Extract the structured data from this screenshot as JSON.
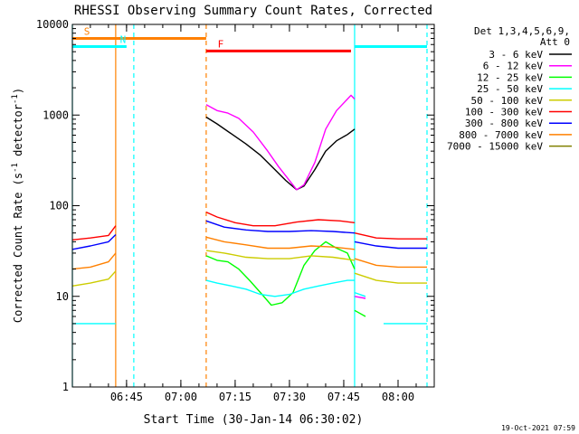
{
  "chart_data": {
    "type": "line",
    "title": "RHESSI Observing Summary Count Rates, Corrected",
    "xlabel": "Start Time (30-Jan-14 06:30:02)",
    "ylabel_main": "Corrected Count Rate (s",
    "ylabel_sup1": "-1",
    "ylabel_mid": " detector",
    "ylabel_sup2": "-1",
    "ylabel_end": ")",
    "timestamp": "19-Oct-2021 07:59",
    "y_scale": "log",
    "ylim": [
      1,
      10000
    ],
    "xlim": [
      "06:30:02",
      "08:10:00"
    ],
    "x_ticks": [
      "06:45",
      "07:00",
      "07:15",
      "07:30",
      "07:45",
      "08:00"
    ],
    "y_ticks": [
      "1",
      "10",
      "100",
      "1000",
      "10000"
    ],
    "legend_title": [
      "Det 1,3,4,5,6,9,",
      "Att 0"
    ],
    "legend_position": "right",
    "series": [
      {
        "name": "3 - 6 keV",
        "color": "#000000",
        "segments": [
          [
            [
              "07:07",
              950
            ],
            [
              "07:10",
              800
            ],
            [
              "07:14",
              620
            ],
            [
              "07:18",
              480
            ],
            [
              "07:22",
              360
            ],
            [
              "07:26",
              250
            ],
            [
              "07:29",
              190
            ],
            [
              "07:32",
              150
            ],
            [
              "07:34",
              165
            ],
            [
              "07:37",
              250
            ],
            [
              "07:40",
              400
            ],
            [
              "07:43",
              520
            ],
            [
              "07:46",
              610
            ],
            [
              "07:48",
              700
            ]
          ]
        ]
      },
      {
        "name": "6 - 12 keV",
        "color": "#ff00ff",
        "segments": [
          [
            [
              "07:07",
              1300
            ],
            [
              "07:10",
              1120
            ],
            [
              "07:13",
              1050
            ],
            [
              "07:16",
              920
            ],
            [
              "07:20",
              650
            ],
            [
              "07:24",
              400
            ],
            [
              "07:27",
              270
            ],
            [
              "07:30",
              190
            ],
            [
              "07:32",
              150
            ],
            [
              "07:34",
              170
            ],
            [
              "07:37",
              300
            ],
            [
              "07:40",
              700
            ],
            [
              "07:43",
              1120
            ],
            [
              "07:46",
              1500
            ],
            [
              "07:47",
              1650
            ],
            [
              "07:48",
              1500
            ]
          ],
          [
            [
              "07:48",
              10
            ],
            [
              "07:51",
              9.5
            ]
          ]
        ]
      },
      {
        "name": "12 - 25 keV",
        "color": "#00ff00",
        "segments": [
          [
            [
              "07:07",
              28
            ],
            [
              "07:10",
              25
            ],
            [
              "07:13",
              24
            ],
            [
              "07:16",
              20
            ],
            [
              "07:19",
              15
            ],
            [
              "07:22",
              11
            ],
            [
              "07:25",
              8
            ],
            [
              "07:28",
              8.5
            ],
            [
              "07:31",
              11
            ],
            [
              "07:34",
              22
            ],
            [
              "07:37",
              32
            ],
            [
              "07:40",
              40
            ],
            [
              "07:43",
              34
            ],
            [
              "07:46",
              30
            ],
            [
              "07:48",
              20
            ]
          ],
          [
            [
              "07:48",
              7
            ],
            [
              "07:51",
              6
            ]
          ]
        ]
      },
      {
        "name": "25 - 50 keV",
        "color": "#00ffff",
        "segments": [
          [
            [
              "06:30:02",
              5
            ],
            [
              "06:42",
              5
            ]
          ],
          [
            [
              "07:07",
              15
            ],
            [
              "07:10",
              14
            ],
            [
              "07:14",
              13
            ],
            [
              "07:18",
              12
            ],
            [
              "07:22",
              10.5
            ],
            [
              "07:26",
              10
            ],
            [
              "07:30",
              10.5
            ],
            [
              "07:34",
              12
            ],
            [
              "07:38",
              13
            ],
            [
              "07:42",
              14
            ],
            [
              "07:46",
              15
            ],
            [
              "07:48",
              15
            ]
          ],
          [
            [
              "07:48",
              11
            ],
            [
              "07:51",
              10
            ]
          ],
          [
            [
              "07:56",
              5
            ],
            [
              "08:08",
              5
            ]
          ]
        ]
      },
      {
        "name": "50 - 100 keV",
        "color": "#cccc00",
        "segments": [
          [
            [
              "06:30:02",
              13
            ],
            [
              "06:35",
              14
            ],
            [
              "06:40",
              15.5
            ],
            [
              "06:42",
              19
            ]
          ],
          [
            [
              "07:07",
              32
            ],
            [
              "07:12",
              30
            ],
            [
              "07:18",
              27
            ],
            [
              "07:24",
              26
            ],
            [
              "07:30",
              26
            ],
            [
              "07:36",
              28
            ],
            [
              "07:42",
              27
            ],
            [
              "07:48",
              25
            ]
          ],
          [
            [
              "07:48",
              18
            ],
            [
              "07:54",
              15
            ],
            [
              "08:00",
              14
            ],
            [
              "08:08",
              14
            ]
          ]
        ]
      },
      {
        "name": "100 - 300 keV",
        "color": "#ff0000",
        "segments": [
          [
            [
              "06:30:02",
              42
            ],
            [
              "06:35",
              44
            ],
            [
              "06:40",
              47
            ],
            [
              "06:42",
              60
            ]
          ],
          [
            [
              "07:07",
              85
            ],
            [
              "07:10",
              75
            ],
            [
              "07:15",
              65
            ],
            [
              "07:20",
              60
            ],
            [
              "07:26",
              60
            ],
            [
              "07:32",
              66
            ],
            [
              "07:38",
              70
            ],
            [
              "07:44",
              68
            ],
            [
              "07:48",
              65
            ]
          ],
          [
            [
              "07:48",
              50
            ],
            [
              "07:54",
              44
            ],
            [
              "08:00",
              43
            ],
            [
              "08:08",
              43
            ]
          ]
        ]
      },
      {
        "name": "300 - 800 keV",
        "color": "#0000ff",
        "segments": [
          [
            [
              "06:30:02",
              33
            ],
            [
              "06:35",
              36
            ],
            [
              "06:40",
              40
            ],
            [
              "06:42",
              48
            ]
          ],
          [
            [
              "07:07",
              68
            ],
            [
              "07:12",
              58
            ],
            [
              "07:18",
              54
            ],
            [
              "07:24",
              52
            ],
            [
              "07:30",
              52
            ],
            [
              "07:36",
              53
            ],
            [
              "07:42",
              52
            ],
            [
              "07:48",
              50
            ]
          ],
          [
            [
              "07:48",
              40
            ],
            [
              "07:54",
              36
            ],
            [
              "08:00",
              34
            ],
            [
              "08:08",
              34
            ]
          ]
        ]
      },
      {
        "name": "800 - 7000 keV",
        "color": "#ff8000",
        "segments": [
          [
            [
              "06:30:02",
              20
            ],
            [
              "06:35",
              21
            ],
            [
              "06:40",
              24
            ],
            [
              "06:42",
              30
            ]
          ],
          [
            [
              "07:07",
              45
            ],
            [
              "07:12",
              40
            ],
            [
              "07:18",
              37
            ],
            [
              "07:24",
              34
            ],
            [
              "07:30",
              34
            ],
            [
              "07:36",
              36
            ],
            [
              "07:42",
              35
            ],
            [
              "07:48",
              33
            ]
          ],
          [
            [
              "07:48",
              26
            ],
            [
              "07:54",
              22
            ],
            [
              "08:00",
              21
            ],
            [
              "08:08",
              21
            ]
          ]
        ]
      },
      {
        "name": "7000 - 15000 keV",
        "color": "#808000",
        "segments": []
      }
    ],
    "attenuator_bars": [
      {
        "label": "S",
        "color": "#ff8000",
        "from": "06:30:02",
        "to": "07:07",
        "y": 7000
      },
      {
        "label": "N",
        "color": "#00ffff",
        "from": "06:30:02",
        "to": "06:45",
        "y": 5700
      },
      {
        "label": "F",
        "color": "#ff0000",
        "from": "07:07",
        "to": "07:47",
        "y": 5100
      },
      {
        "label": "",
        "color": "#00ffff",
        "from": "07:48",
        "to": "08:08",
        "y": 5700
      }
    ],
    "vertical_markers": [
      {
        "time": "06:30:02",
        "color": "#00ffff",
        "style": "solid"
      },
      {
        "time": "06:42",
        "color": "#ff8000",
        "style": "solid"
      },
      {
        "time": "06:47",
        "color": "#00ffff",
        "style": "dashed"
      },
      {
        "time": "07:07",
        "color": "#ff8000",
        "style": "dashed"
      },
      {
        "time": "07:48",
        "color": "#00ffff",
        "style": "solid"
      },
      {
        "time": "08:08",
        "color": "#00ffff",
        "style": "dashed"
      }
    ]
  }
}
